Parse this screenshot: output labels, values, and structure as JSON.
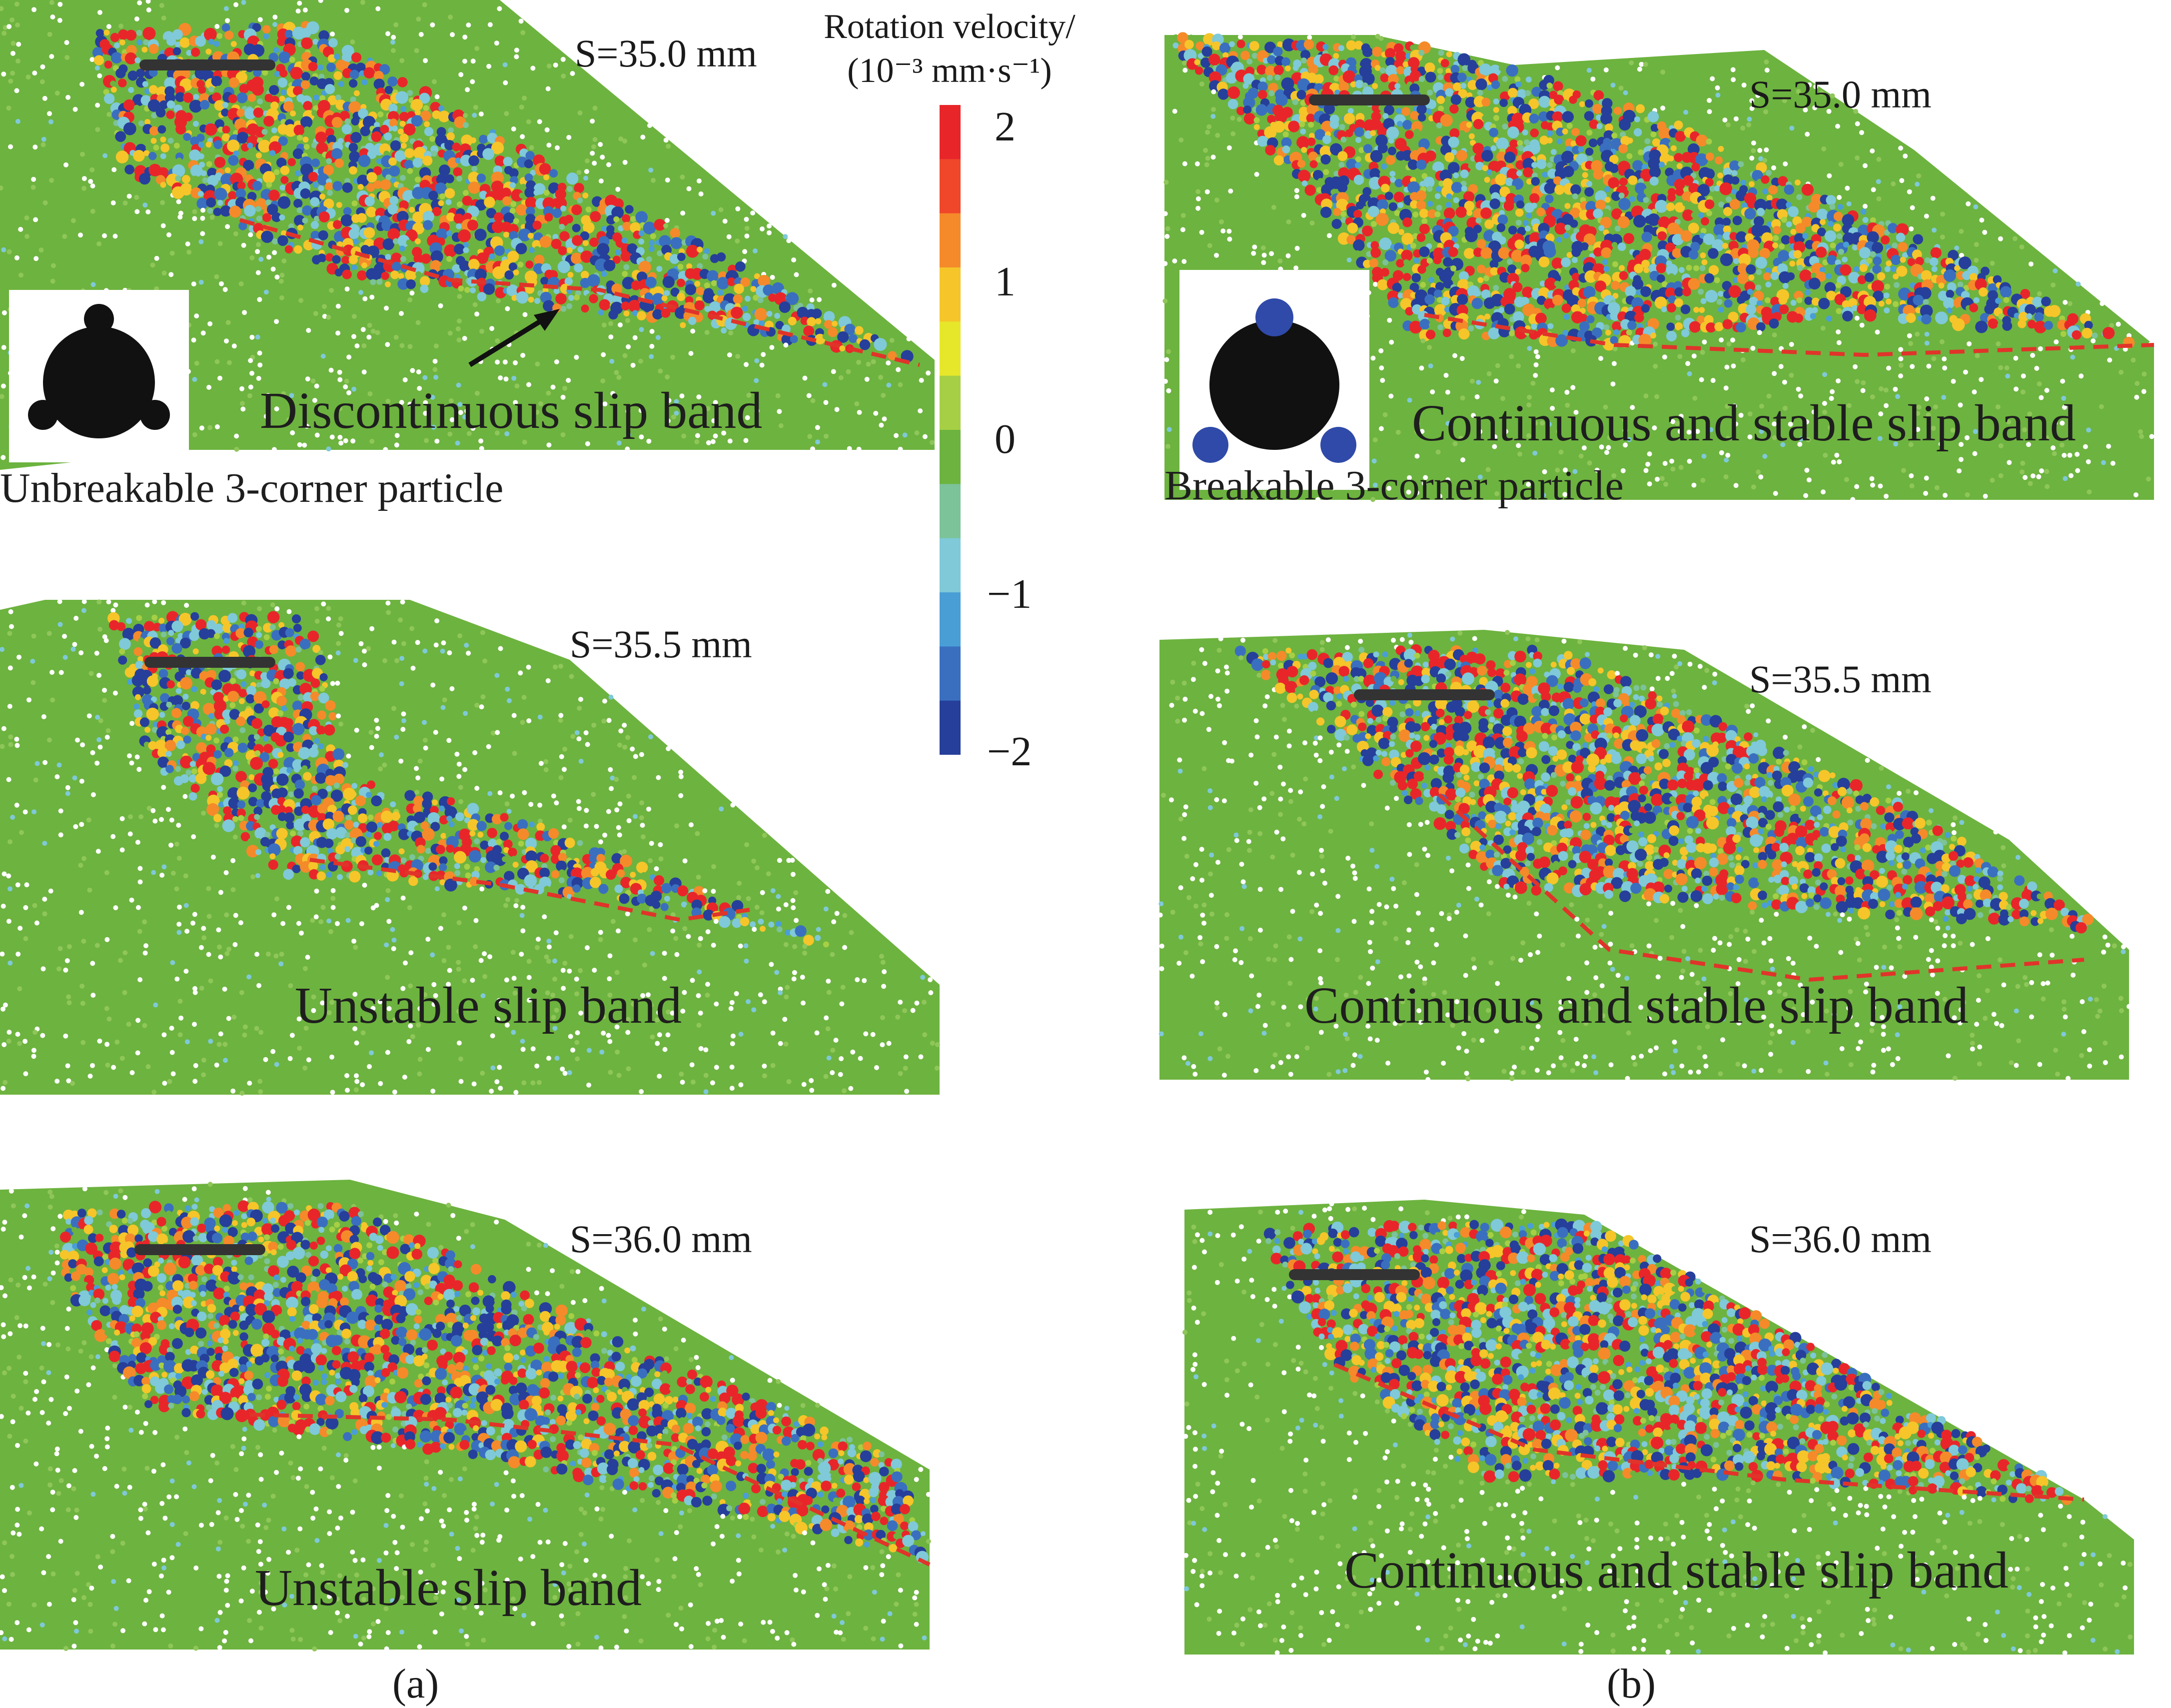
{
  "figure": {
    "colorbar": {
      "title_line1": "Rotation velocity/",
      "title_line2": "(10⁻³ mm·s⁻¹)",
      "ticks": [
        "2",
        "1",
        "0",
        "−1",
        "−2"
      ],
      "range": [
        -2,
        2
      ],
      "colors": [
        "#e8262a",
        "#f0462a",
        "#f58a2a",
        "#f5c52a",
        "#e6e62a",
        "#a6cf45",
        "#6db33f",
        "#7cc39a",
        "#7fc9d9",
        "#4a9ed6",
        "#3a6fbf",
        "#263f9a"
      ]
    },
    "panel_a": {
      "sublabel": "(a)",
      "rows": [
        {
          "s_label": "S=35.0 mm",
          "band_label": "Discontinuous slip band",
          "particle_label": "Unbreakable 3-corner particle"
        },
        {
          "s_label": "S=35.5 mm",
          "band_label": "Unstable slip band"
        },
        {
          "s_label": "S=36.0 mm",
          "band_label": "Unstable slip band"
        }
      ]
    },
    "panel_b": {
      "sublabel": "(b)",
      "rows": [
        {
          "s_label": "S=35.0 mm",
          "band_label": "Continuous and stable slip band",
          "particle_label": "Breakable 3-corner particle"
        },
        {
          "s_label": "S=35.5 mm",
          "band_label": "Continuous and stable slip band"
        },
        {
          "s_label": "S=36.0 mm",
          "band_label": "Continuous and stable slip band"
        }
      ]
    },
    "palette": {
      "background_green": "#6db33f",
      "slip_line": "#e0342a",
      "footing": "#333333",
      "particle_black": "#111111",
      "particle_blue": "#2f4aa8"
    }
  }
}
